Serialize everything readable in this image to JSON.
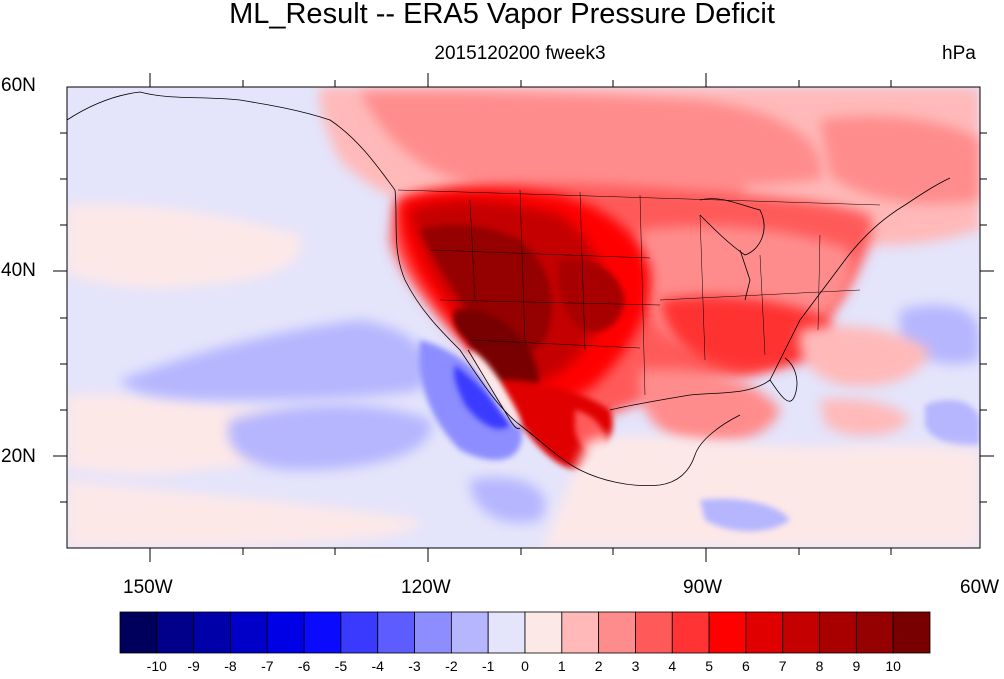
{
  "title": "ML_Result -- ERA5 Vapor Pressure Deficit",
  "subtitle": "2015120200 fweek3",
  "units": "hPa",
  "lat_labels": [
    "60N",
    "40N",
    "20N"
  ],
  "lon_labels": [
    "150W",
    "120W",
    "90W",
    "60W"
  ],
  "colorbar": {
    "labels": [
      "-10",
      "-9",
      "-8",
      "-7",
      "-6",
      "-5",
      "-4",
      "-3",
      "-2",
      "-1",
      "0",
      "1",
      "2",
      "3",
      "4",
      "5",
      "6",
      "7",
      "8",
      "9",
      "10"
    ],
    "colors": [
      "#00005c",
      "#00008a",
      "#0000a8",
      "#0000c8",
      "#0000e6",
      "#0a0aff",
      "#3a3aff",
      "#5c5cff",
      "#8d8dff",
      "#b6b6ff",
      "#e4e4fb",
      "#fde8e8",
      "#ffb9b9",
      "#ff8c8c",
      "#ff5a5a",
      "#ff3333",
      "#ff0000",
      "#e00000",
      "#c40000",
      "#a80000",
      "#950000",
      "#780000"
    ]
  },
  "extent": {
    "lon_min": -160,
    "lon_max": -60,
    "lat_min": 10,
    "lat_max": 60
  }
}
